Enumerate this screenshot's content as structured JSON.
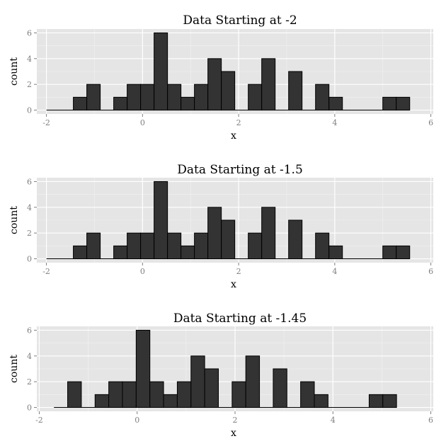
{
  "chart_data": [
    {
      "type": "bar",
      "title": "Data Starting at -2",
      "xlabel": "x",
      "ylabel": "count",
      "xlim": [
        -2.2,
        6.05
      ],
      "ylim": [
        -0.3,
        6.3
      ],
      "xticks": [
        -2,
        0,
        2,
        4,
        6
      ],
      "yticks": [
        0,
        2,
        4,
        6
      ],
      "bin_width": 0.28,
      "bins_start": -2,
      "counts": [
        0,
        0,
        1,
        2,
        0,
        1,
        2,
        2,
        6,
        2,
        1,
        2,
        4,
        3,
        0,
        2,
        4,
        0,
        3,
        0,
        2,
        1,
        0,
        0,
        0,
        1,
        1
      ],
      "grid": true
    },
    {
      "type": "bar",
      "title": "Data Starting at -1.5",
      "xlabel": "x",
      "ylabel": "count",
      "xlim": [
        -2.2,
        6.05
      ],
      "ylim": [
        -0.3,
        6.3
      ],
      "xticks": [
        -2,
        0,
        2,
        4,
        6
      ],
      "yticks": [
        0,
        2,
        4,
        6
      ],
      "bin_width": 0.28,
      "bins_start": -2,
      "counts": [
        0,
        0,
        1,
        2,
        0,
        1,
        2,
        2,
        6,
        2,
        1,
        2,
        4,
        3,
        0,
        2,
        4,
        0,
        3,
        0,
        2,
        1,
        0,
        0,
        0,
        1,
        1
      ],
      "grid": true
    },
    {
      "type": "bar",
      "title": "Data Starting at -1.45",
      "xlabel": "x",
      "ylabel": "count",
      "xlim": [
        -2.05,
        6.05
      ],
      "ylim": [
        -0.3,
        6.3
      ],
      "xticks": [
        -2,
        0,
        2,
        4,
        6
      ],
      "yticks": [
        0,
        2,
        4,
        6
      ],
      "bin_width": 0.28,
      "bins_start": -1.7,
      "counts": [
        0,
        2,
        0,
        1,
        2,
        2,
        6,
        2,
        1,
        2,
        4,
        3,
        0,
        2,
        4,
        0,
        3,
        0,
        2,
        1,
        0,
        0,
        0,
        1,
        1
      ],
      "grid": true
    }
  ],
  "colors": {
    "panel_background": "#e5e5e5",
    "grid_major": "#ffffff",
    "grid_minor": "#f2f2f2",
    "bar_fill": "#333333",
    "bar_outline": "#000000",
    "tick_text": "#7f7f7f"
  }
}
